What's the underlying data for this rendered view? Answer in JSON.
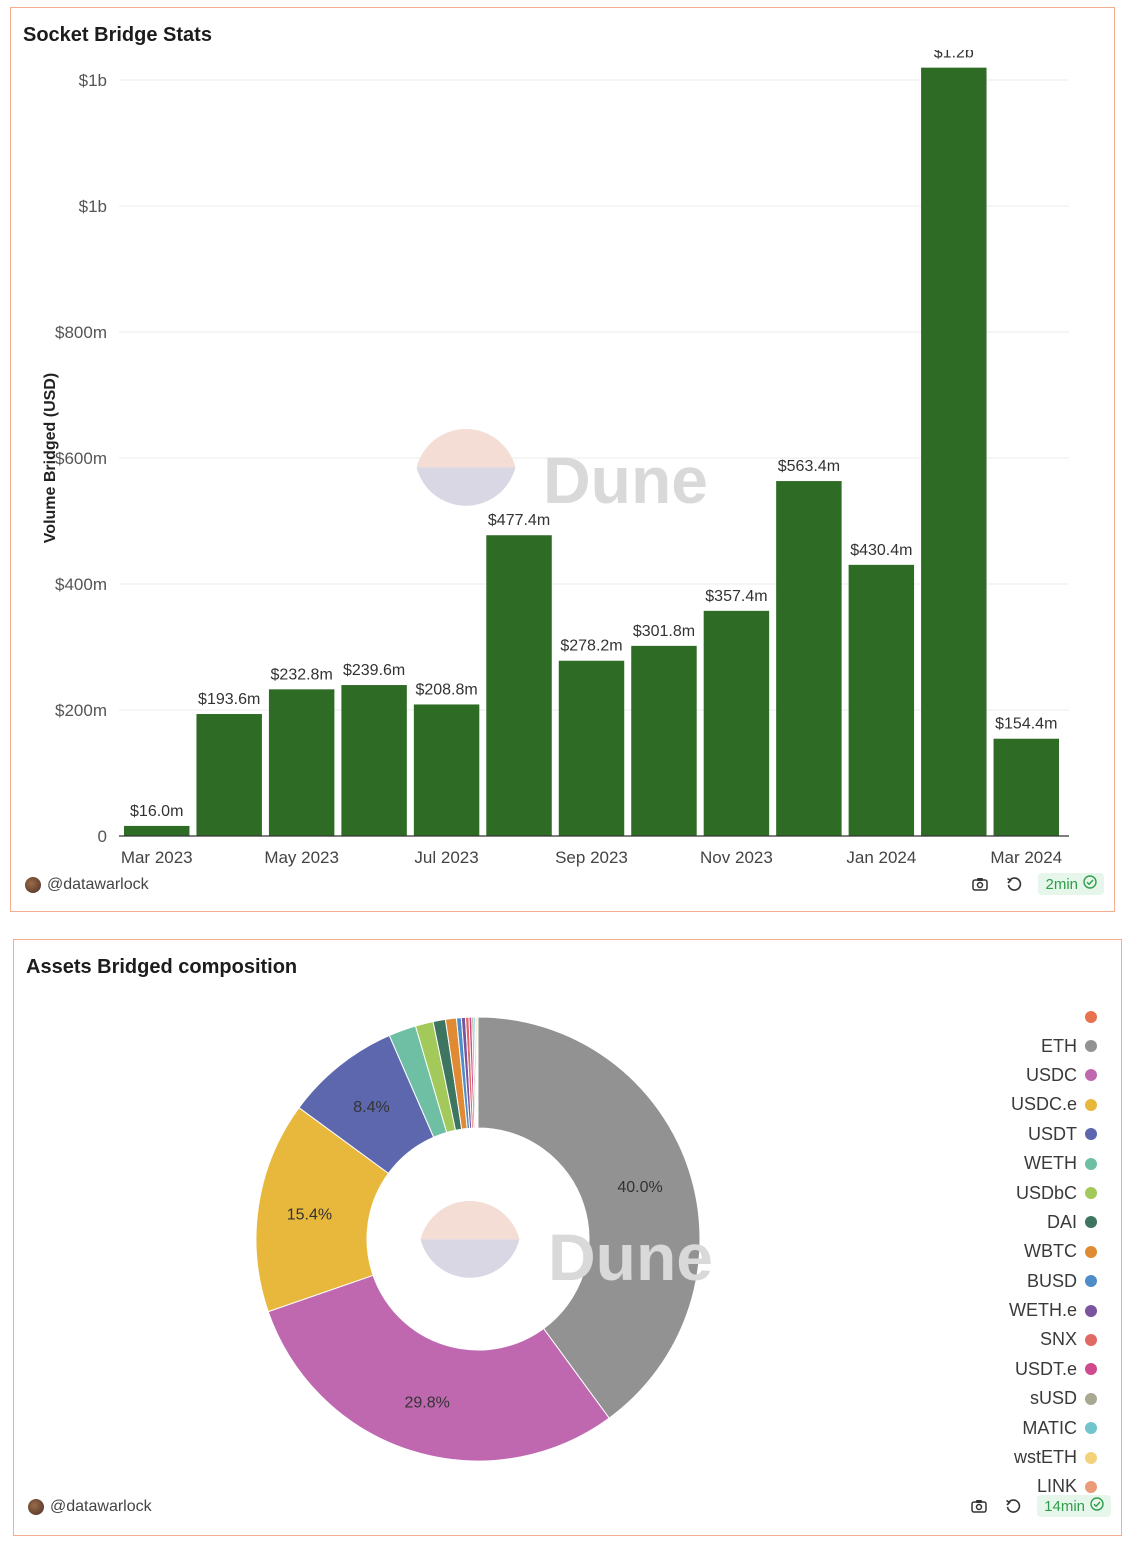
{
  "panels": {
    "bar": {
      "title": "Socket Bridge Stats",
      "author": "@datawarlock",
      "freshness": "2min"
    },
    "pie": {
      "title": "Assets Bridged composition",
      "author": "@datawarlock",
      "freshness": "14min"
    }
  },
  "watermark": "Dune",
  "chart_data": [
    {
      "type": "bar",
      "title": "Socket Bridge Stats",
      "xlabel": "",
      "ylabel": "Volume Bridged (USD)",
      "categories": [
        "Mar 2023",
        "Apr 2023",
        "May 2023",
        "Jun 2023",
        "Jul 2023",
        "Aug 2023",
        "Sep 2023",
        "Oct 2023",
        "Nov 2023",
        "Dec 2023",
        "Jan 2024",
        "Feb 2024",
        "Mar 2024"
      ],
      "values": [
        16.0,
        193.6,
        232.8,
        239.6,
        208.8,
        477.4,
        278.2,
        301.8,
        357.4,
        563.4,
        430.4,
        1219.6,
        154.4
      ],
      "value_unit": "millions USD",
      "data_labels": [
        "$16.0m",
        "$193.6m",
        "$232.8m",
        "$239.6m",
        "$208.8m",
        "$477.4m",
        "$278.2m",
        "$301.8m",
        "$357.4m",
        "$563.4m",
        "$430.4m",
        "$1.2b",
        "$154.4m"
      ],
      "x_tick_labels": [
        "Mar 2023",
        "May 2023",
        "Jul 2023",
        "Sep 2023",
        "Nov 2023",
        "Jan 2024",
        "Mar 2024"
      ],
      "y_ticks": [
        0,
        200,
        400,
        600,
        800,
        1000,
        1200
      ],
      "y_tick_labels": [
        "0",
        "$200m",
        "$400m",
        "$600m",
        "$800m",
        "$1b",
        "$1b"
      ],
      "ylim": [
        0,
        1200
      ],
      "color": "#2e6b24",
      "grid": true
    },
    {
      "type": "pie",
      "title": "Assets Bridged composition",
      "donut": true,
      "labels": [
        "",
        "ETH",
        "USDC",
        "USDC.e",
        "USDT",
        "WETH",
        "USDbC",
        "DAI",
        "WBTC",
        "BUSD",
        "WETH.e",
        "SNX",
        "USDT.e",
        "sUSD",
        "MATIC",
        "wstETH",
        "LINK"
      ],
      "values": [
        0.0,
        40.0,
        29.8,
        15.4,
        8.4,
        2.0,
        1.3,
        0.9,
        0.8,
        0.35,
        0.3,
        0.25,
        0.2,
        0.15,
        0.12,
        0.1,
        0.08
      ],
      "slice_labels": [
        "",
        "40.0%",
        "29.8%",
        "15.4%",
        "8.4%",
        "",
        "",
        "",
        "",
        "",
        "",
        "",
        "",
        "",
        "",
        "",
        ""
      ],
      "colors": [
        "#e8714f",
        "#929292",
        "#bf68b0",
        "#e8b83d",
        "#5c67ad",
        "#6fbfa5",
        "#a3c95a",
        "#3d7561",
        "#e08a33",
        "#4f8dc9",
        "#7a559e",
        "#e06a63",
        "#d04a8e",
        "#a8a893",
        "#72c5cc",
        "#f2d27a",
        "#ec9b78"
      ],
      "legend_position": "right"
    }
  ]
}
